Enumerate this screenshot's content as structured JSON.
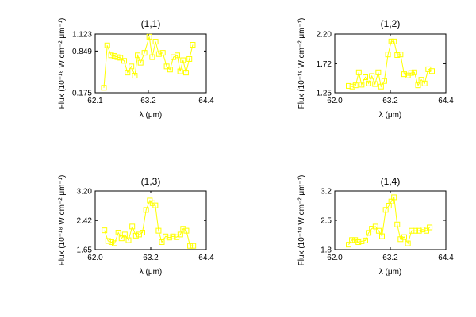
{
  "chart_data": [
    {
      "type": "line",
      "title": "(1,1)",
      "xlabel": "λ (μm)",
      "ylabel": "Flux (10⁻¹⁸ W cm⁻² μm⁻¹)",
      "xlim": [
        62.1,
        64.4
      ],
      "ylim": [
        0.175,
        1.123
      ],
      "xticks": [
        "62.1",
        "63.2",
        "64.4"
      ],
      "yticks": [
        "0.175",
        "0.849",
        "1.123"
      ],
      "xtick_values": [
        62.1,
        63.2,
        64.4
      ],
      "ytick_values": [
        0.175,
        0.849,
        1.123
      ],
      "marker": "square",
      "color": "#ffff00",
      "grid": false,
      "series": [
        {
          "x": [
            62.28,
            62.35,
            62.43,
            62.5,
            62.56,
            62.62,
            62.7,
            62.77,
            62.85,
            62.92,
            62.98,
            63.04,
            63.12,
            63.22,
            63.28,
            63.35,
            63.42,
            63.5,
            63.58,
            63.65,
            63.72,
            63.8,
            63.86,
            63.92,
            63.98,
            64.05,
            64.12
          ],
          "y": [
            0.255,
            0.94,
            0.78,
            0.77,
            0.75,
            0.74,
            0.69,
            0.5,
            0.6,
            0.45,
            0.78,
            0.66,
            0.82,
            1.08,
            0.75,
            1.0,
            0.8,
            0.82,
            0.6,
            0.55,
            0.75,
            0.78,
            0.52,
            0.7,
            0.5,
            0.72,
            0.95
          ]
        }
      ]
    },
    {
      "type": "line",
      "title": "(1,2)",
      "xlabel": "λ (μm)",
      "ylabel": "Flux (10⁻¹⁸ W cm⁻² μm⁻¹)",
      "xlim": [
        62.0,
        64.4
      ],
      "ylim": [
        1.25,
        2.2
      ],
      "xticks": [
        "62.0",
        "63.2",
        "64.4"
      ],
      "yticks": [
        "1.25",
        "1.72",
        "2.20"
      ],
      "xtick_values": [
        62.0,
        63.2,
        64.4
      ],
      "ytick_values": [
        1.25,
        1.72,
        2.2
      ],
      "marker": "square",
      "color": "#ffff00",
      "grid": false,
      "series": [
        {
          "x": [
            62.3,
            62.38,
            62.45,
            62.52,
            62.58,
            62.66,
            62.73,
            62.8,
            62.87,
            62.94,
            63.0,
            63.07,
            63.15,
            63.22,
            63.28,
            63.35,
            63.42,
            63.5,
            63.58,
            63.65,
            63.72,
            63.8,
            63.87,
            63.94,
            64.02,
            64.1
          ],
          "y": [
            1.36,
            1.35,
            1.37,
            1.58,
            1.38,
            1.5,
            1.4,
            1.52,
            1.39,
            1.58,
            1.35,
            1.44,
            1.87,
            2.08,
            2.08,
            1.86,
            1.87,
            1.55,
            1.53,
            1.57,
            1.58,
            1.37,
            1.46,
            1.4,
            1.63,
            1.6
          ]
        }
      ]
    },
    {
      "type": "line",
      "title": "(1,3)",
      "xlabel": "λ (μm)",
      "ylabel": "Flux (10⁻¹⁸ W cm⁻² μm⁻¹)",
      "xlim": [
        62.0,
        64.4
      ],
      "ylim": [
        1.65,
        3.2
      ],
      "xticks": [
        "62.0",
        "63.2",
        "64.4"
      ],
      "yticks": [
        "1.65",
        "2.42",
        "3.20"
      ],
      "xtick_values": [
        62.0,
        63.2,
        64.4
      ],
      "ytick_values": [
        1.65,
        2.42,
        3.2
      ],
      "marker": "square",
      "color": "#ffff00",
      "grid": false,
      "series": [
        {
          "x": [
            62.2,
            62.28,
            62.35,
            62.42,
            62.5,
            62.57,
            62.64,
            62.72,
            62.8,
            62.88,
            62.95,
            63.02,
            63.1,
            63.18,
            63.24,
            63.3,
            63.37,
            63.44,
            63.52,
            63.6,
            63.68,
            63.76,
            63.84,
            63.9,
            63.97,
            64.05,
            64.12
          ],
          "y": [
            2.16,
            1.88,
            1.85,
            1.82,
            2.1,
            1.95,
            2.05,
            1.9,
            2.26,
            2.02,
            2.05,
            2.1,
            2.7,
            2.95,
            2.88,
            2.82,
            2.15,
            1.85,
            2.0,
            1.97,
            2.0,
            1.98,
            2.05,
            2.2,
            2.15,
            1.75,
            1.75
          ]
        }
      ]
    },
    {
      "type": "line",
      "title": "(1,4)",
      "xlabel": "λ (μm)",
      "ylabel": "Flux (10⁻¹⁸ W cm⁻² μm⁻¹)",
      "xlim": [
        62.0,
        64.4
      ],
      "ylim": [
        1.8,
        3.2
      ],
      "xticks": [
        "62.0",
        "63.2",
        "64.4"
      ],
      "yticks": [
        "1.8",
        "2.5",
        "3.2"
      ],
      "xtick_values": [
        62.0,
        63.2,
        64.4
      ],
      "ytick_values": [
        1.8,
        2.5,
        3.2
      ],
      "marker": "square",
      "color": "#ffff00",
      "grid": false,
      "series": [
        {
          "x": [
            62.3,
            62.37,
            62.44,
            62.51,
            62.58,
            62.66,
            62.73,
            62.8,
            62.88,
            62.95,
            63.02,
            63.1,
            63.17,
            63.22,
            63.28,
            63.35,
            63.42,
            63.5,
            63.58,
            63.66,
            63.74,
            63.82,
            63.9,
            63.98,
            64.05
          ],
          "y": [
            1.92,
            2.03,
            2.03,
            1.98,
            2.0,
            2.02,
            2.2,
            2.3,
            2.35,
            2.25,
            2.12,
            2.75,
            2.85,
            2.95,
            3.05,
            2.4,
            2.05,
            2.1,
            1.95,
            2.25,
            2.25,
            2.25,
            2.28,
            2.25,
            2.33
          ]
        }
      ]
    }
  ]
}
